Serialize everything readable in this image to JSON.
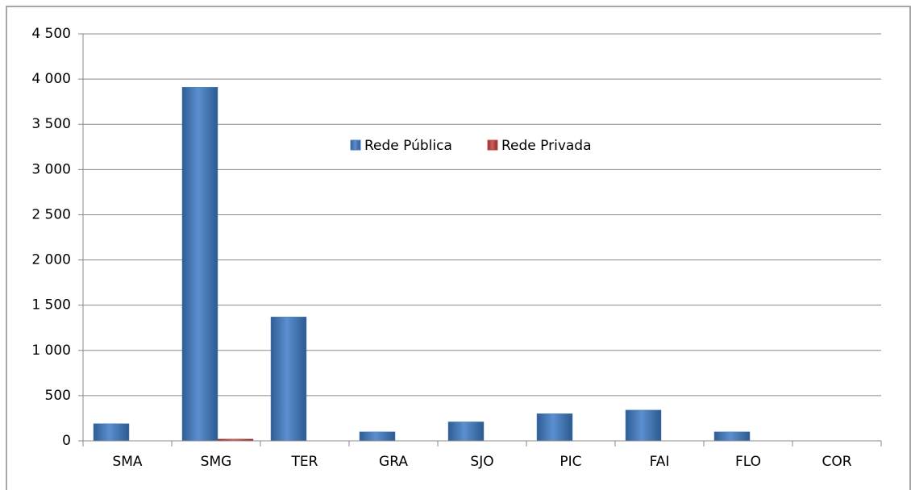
{
  "chart_data": {
    "type": "bar",
    "categories": [
      "SMA",
      "SMG",
      "TER",
      "GRA",
      "SJO",
      "PIC",
      "FAI",
      "FLO",
      "COR"
    ],
    "series": [
      {
        "name": "Rede Pública",
        "color": "#4f81bd",
        "values": [
          190,
          3910,
          1370,
          100,
          210,
          300,
          340,
          100,
          0
        ]
      },
      {
        "name": "Rede Privada",
        "color": "#c0504d",
        "values": [
          0,
          20,
          0,
          0,
          0,
          0,
          0,
          0,
          0
        ]
      }
    ],
    "ylim": [
      0,
      4500
    ],
    "yticks": [
      0,
      500,
      {
        "value": 1000,
        "label": "1 000"
      },
      {
        "value": 1500,
        "label": "1 500"
      },
      {
        "value": 2000,
        "label": "2 000"
      },
      {
        "value": 2500,
        "label": "2 500"
      },
      {
        "value": 3000,
        "label": "3 000"
      },
      {
        "value": 3500,
        "label": "3 500"
      },
      {
        "value": 4000,
        "label": "4 000"
      },
      {
        "value": 4500,
        "label": "4 500"
      }
    ],
    "grid": true,
    "legend": "top"
  }
}
